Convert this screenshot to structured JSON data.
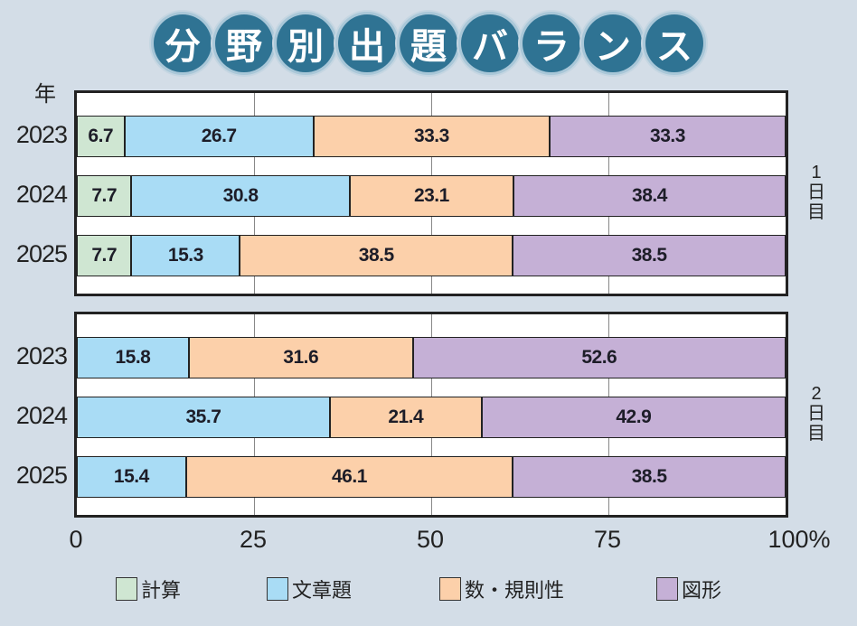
{
  "title_chars": [
    "分",
    "野",
    "別",
    "出",
    "題",
    "バ",
    "ラ",
    "ン",
    "ス"
  ],
  "chart_data": {
    "type": "bar",
    "orientation": "horizontal",
    "stacked": true,
    "title": "分野別出題バランス",
    "ylabel": "年",
    "xlabel": "",
    "xlim": [
      0,
      100
    ],
    "x_ticks": [
      "0",
      "25",
      "50",
      "75",
      "100%"
    ],
    "x_tick_values": [
      0,
      25,
      50,
      75,
      100
    ],
    "grid": true,
    "legend_position": "bottom",
    "categories_legend": [
      "計算",
      "文章題",
      "数・規則性",
      "図形"
    ],
    "colors": {
      "計算": "#cfe6d2",
      "文章題": "#a9dcf5",
      "数・規則性": "#fcd0aa",
      "図形": "#c5b0d6"
    },
    "panels": [
      {
        "label_lines": [
          "1",
          "日",
          "目"
        ],
        "categories": [
          "2023",
          "2024",
          "2025"
        ],
        "series": [
          {
            "name": "計算",
            "values": [
              6.7,
              7.7,
              7.7
            ]
          },
          {
            "name": "文章題",
            "values": [
              26.7,
              30.8,
              15.3
            ]
          },
          {
            "name": "数・規則性",
            "values": [
              33.3,
              23.1,
              38.5
            ]
          },
          {
            "name": "図形",
            "values": [
              33.3,
              38.4,
              38.5
            ]
          }
        ]
      },
      {
        "label_lines": [
          "2",
          "日",
          "目"
        ],
        "categories": [
          "2023",
          "2024",
          "2025"
        ],
        "series": [
          {
            "name": "計算",
            "values": [
              null,
              null,
              null
            ]
          },
          {
            "name": "文章題",
            "values": [
              15.8,
              35.7,
              15.4
            ]
          },
          {
            "name": "数・規則性",
            "values": [
              31.6,
              21.4,
              46.1
            ]
          },
          {
            "name": "図形",
            "values": [
              52.6,
              42.9,
              38.5
            ]
          }
        ]
      }
    ]
  }
}
